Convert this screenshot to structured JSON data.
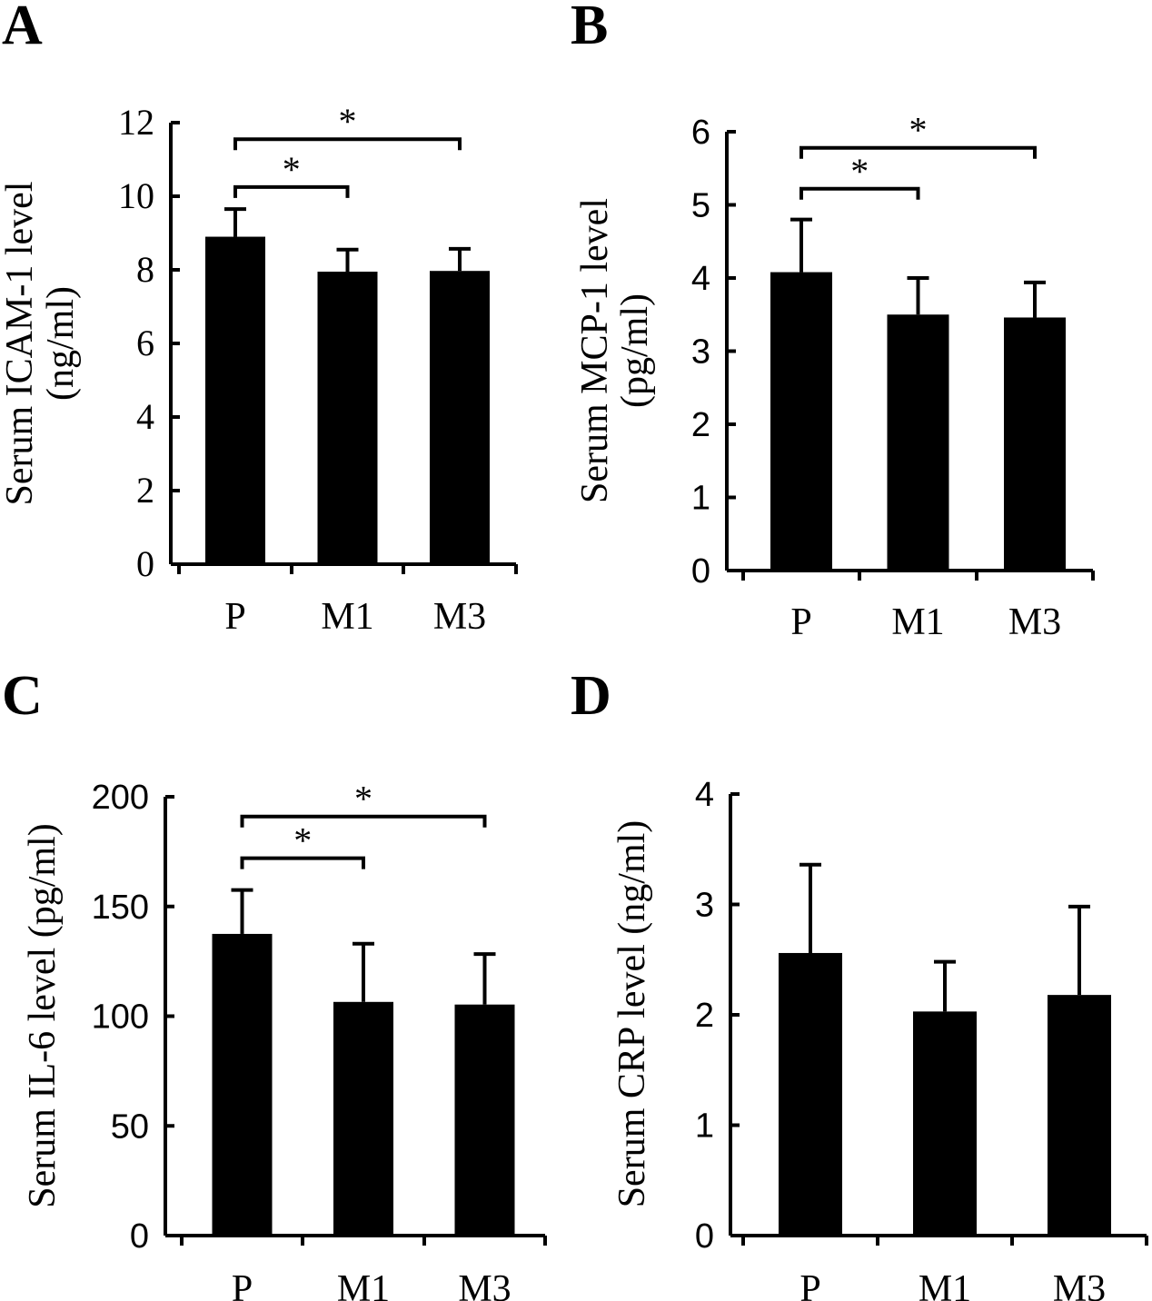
{
  "chart_data": [
    {
      "panel": "A",
      "type": "bar",
      "categories": [
        "P",
        "M1",
        "M3"
      ],
      "values": [
        8.9,
        7.95,
        7.97
      ],
      "errors": [
        0.75,
        0.6,
        0.6
      ],
      "ylabel": [
        "Serum ICAM-1 level",
        "(ng/ml)"
      ],
      "ylim": [
        0,
        12
      ],
      "yticks": [
        0,
        2,
        4,
        6,
        8,
        10,
        12
      ],
      "tick_labels": [
        "0",
        "2",
        "4",
        "6",
        "8",
        "10",
        "12"
      ],
      "significance": [
        {
          "from": 0,
          "to": 1,
          "y": 10.25,
          "label": "*"
        },
        {
          "from": 0,
          "to": 2,
          "y": 11.55,
          "label": "*"
        }
      ]
    },
    {
      "panel": "B",
      "type": "bar",
      "categories": [
        "P",
        "M1",
        "M3"
      ],
      "values": [
        4.08,
        3.5,
        3.46
      ],
      "errors": [
        0.72,
        0.5,
        0.48
      ],
      "ylabel": [
        "Serum MCP-1 level",
        "(pg/ml)"
      ],
      "ylim": [
        0,
        6
      ],
      "yticks": [
        0,
        1,
        2,
        3,
        4,
        5,
        6
      ],
      "tick_labels": [
        "0",
        "1",
        "2",
        "3",
        "4",
        "5",
        "6"
      ],
      "significance": [
        {
          "from": 0,
          "to": 1,
          "y": 5.22,
          "label": "*"
        },
        {
          "from": 0,
          "to": 2,
          "y": 5.78,
          "label": "*"
        }
      ]
    },
    {
      "panel": "C",
      "type": "bar",
      "categories": [
        "P",
        "M1",
        "M3"
      ],
      "values": [
        137.5,
        106.5,
        105.3
      ],
      "errors": [
        20.0,
        26.5,
        23.0
      ],
      "ylabel": [
        "Serum IL-6 level (pg/ml)"
      ],
      "ylim": [
        0,
        200
      ],
      "yticks": [
        0,
        50,
        100,
        150,
        200
      ],
      "tick_labels": [
        "0",
        "50",
        "100",
        "150",
        "200"
      ],
      "significance": [
        {
          "from": 0,
          "to": 1,
          "y": 172.0,
          "label": "*"
        },
        {
          "from": 0,
          "to": 2,
          "y": 191.0,
          "label": "*"
        }
      ]
    },
    {
      "panel": "D",
      "type": "bar",
      "categories": [
        "P",
        "M1",
        "M3"
      ],
      "values": [
        2.56,
        2.03,
        2.18
      ],
      "errors": [
        0.8,
        0.45,
        0.8
      ],
      "ylabel": [
        "Serum CRP level (ng/ml)"
      ],
      "ylim": [
        0,
        4
      ],
      "yticks": [
        0,
        1,
        2,
        3,
        4
      ],
      "tick_labels": [
        "0",
        "1",
        "2",
        "3",
        "4"
      ],
      "significance": []
    }
  ]
}
